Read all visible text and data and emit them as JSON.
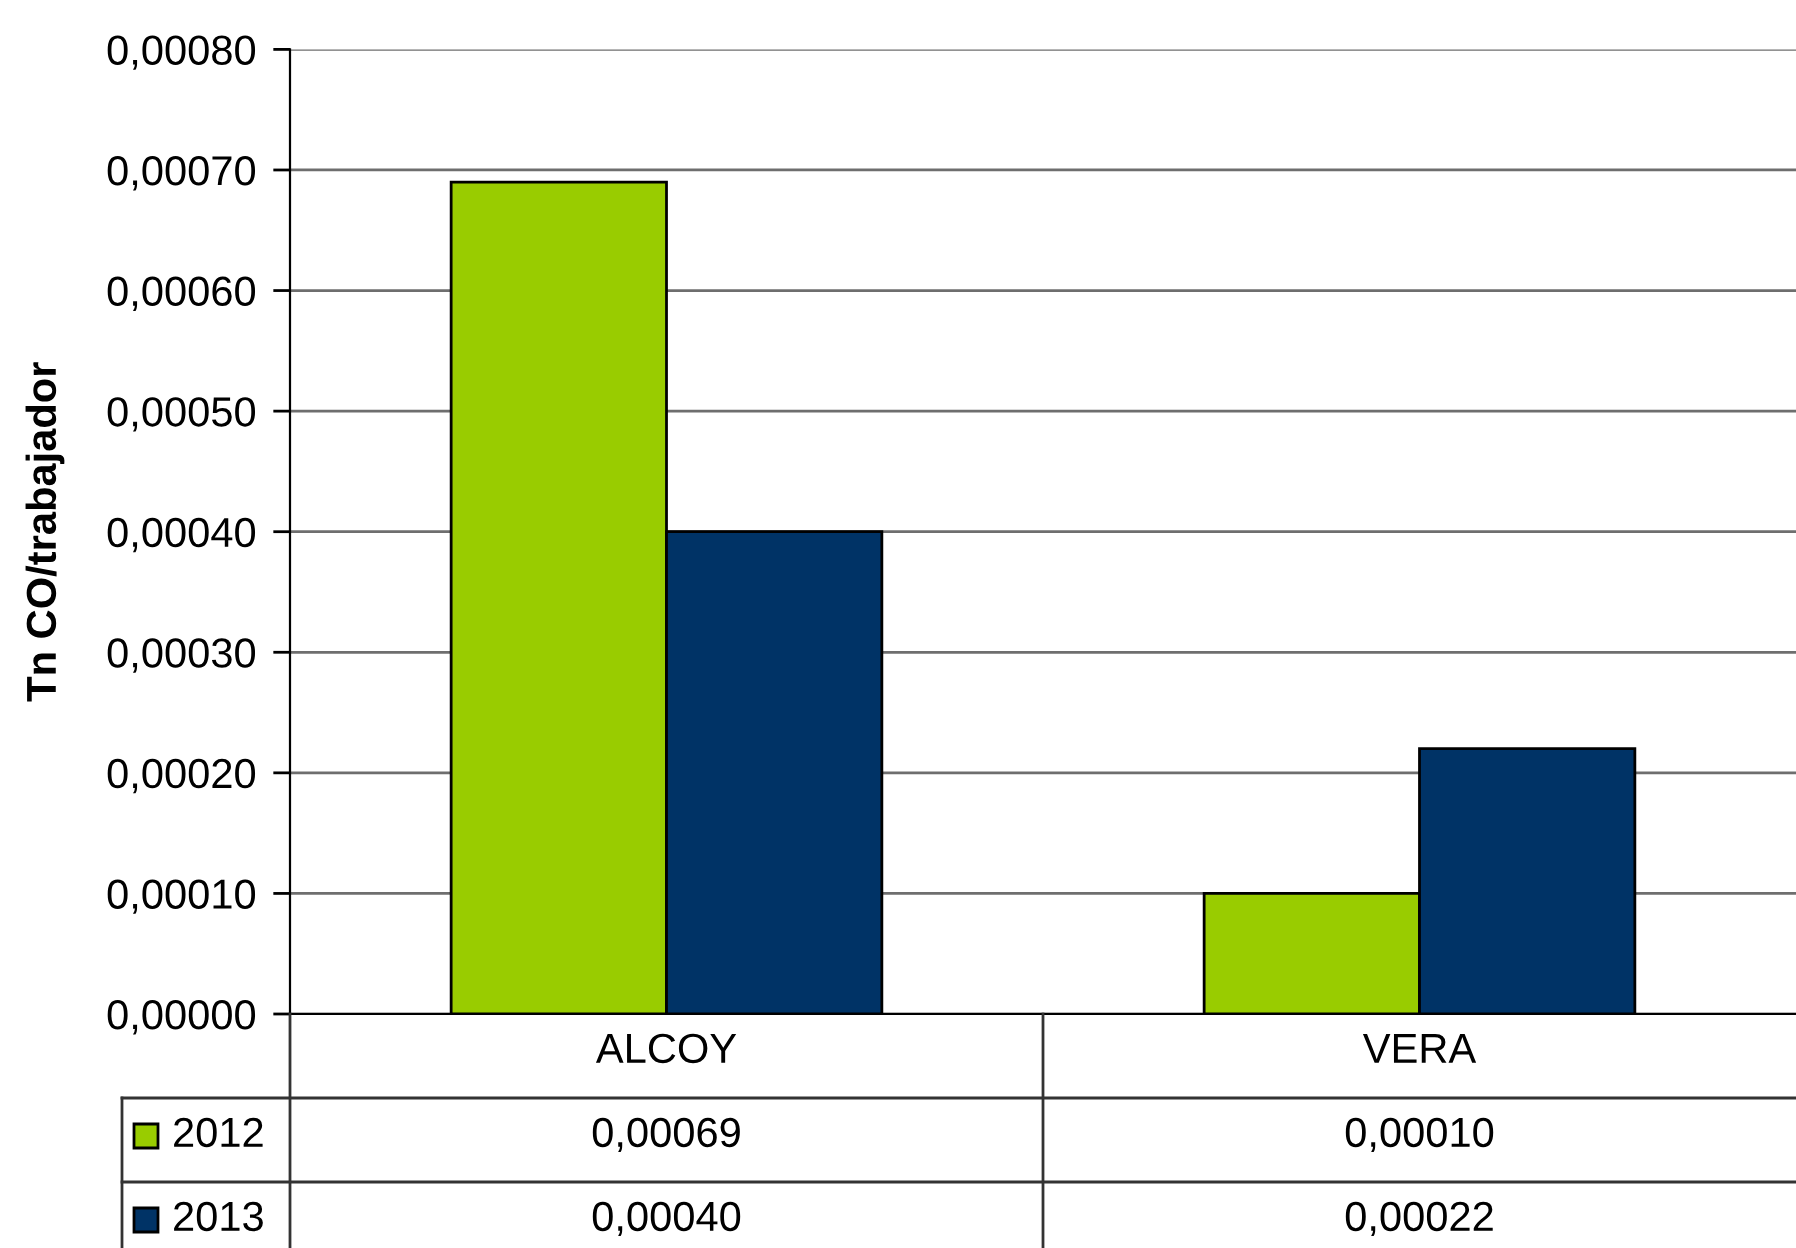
{
  "chart_data": {
    "type": "bar",
    "ylabel": "Tn CO/trabajador",
    "categories": [
      "ALCOY",
      "VERA"
    ],
    "series": [
      {
        "name": "2012",
        "color": "#99cc00",
        "values": [
          0.00069,
          0.0001
        ],
        "value_labels": [
          "0,00069",
          "0,00010"
        ]
      },
      {
        "name": "2013",
        "color": "#003366",
        "values": [
          0.0004,
          0.00022
        ],
        "value_labels": [
          "0,00040",
          "0,00022"
        ]
      }
    ],
    "ylim": [
      0,
      0.0008
    ],
    "yticks": [
      {
        "value": 0,
        "label": "0,00000"
      },
      {
        "value": 0.0001,
        "label": "0,00010"
      },
      {
        "value": 0.0002,
        "label": "0,00020"
      },
      {
        "value": 0.0003,
        "label": "0,00030"
      },
      {
        "value": 0.0004,
        "label": "0,00040"
      },
      {
        "value": 0.0005,
        "label": "0,00050"
      },
      {
        "value": 0.0006,
        "label": "0,00060"
      },
      {
        "value": 0.0007,
        "label": "0,00070"
      },
      {
        "value": 0.0008,
        "label": "0,00080"
      }
    ],
    "grid": "y",
    "legend": "bottom left"
  }
}
